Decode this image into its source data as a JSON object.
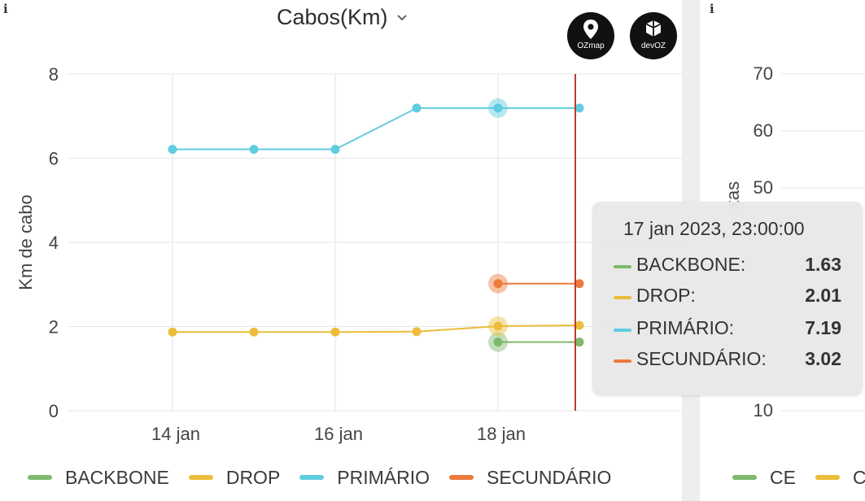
{
  "left_panel": {
    "info_icon": "i",
    "title": "Cabos(Km)",
    "logos": {
      "ozmap": "OZmap",
      "devoz": "devOZ"
    },
    "tooltip": {
      "time": "17 jan 2023, 23:00:00",
      "rows": [
        {
          "name": "BACKBONE:",
          "value": "1.63",
          "color": "#7fb96b"
        },
        {
          "name": "DROP:",
          "value": "2.01",
          "color": "#ecbd3a"
        },
        {
          "name": "PRIMÁRIO:",
          "value": "7.19",
          "color": "#5fcde0"
        },
        {
          "name": "SECUNDÁRIO:",
          "value": "3.02",
          "color": "#ee7a3c"
        }
      ]
    }
  },
  "right_panel": {
    "info_icon": "i",
    "ylabel_fragment": "xas",
    "y_ticks": [
      "70",
      "60",
      "50",
      "10"
    ],
    "legend": [
      {
        "label": "CE",
        "color": "#7fb96b"
      },
      {
        "label": "C",
        "color": "#ecbd3a"
      }
    ]
  },
  "chart_data": {
    "type": "line",
    "title": "Cabos(Km)",
    "xlabel": "",
    "ylabel": "Km de cabo",
    "x": [
      "14 jan",
      "15 jan",
      "16 jan",
      "17 jan",
      "18 jan",
      "19 jan"
    ],
    "x_ticks": [
      "14 jan",
      "16 jan",
      "18 jan"
    ],
    "y_ticks": [
      0,
      2,
      4,
      6,
      8
    ],
    "ylim": [
      0,
      8
    ],
    "grid": true,
    "legend_position": "bottom",
    "hover_x_label": "17 jan 2023, 23:00:00",
    "series": [
      {
        "name": "BACKBONE",
        "color": "#7fb96b",
        "values": [
          null,
          null,
          null,
          null,
          1.63,
          1.63
        ]
      },
      {
        "name": "DROP",
        "color": "#ecbd3a",
        "values": [
          1.87,
          1.87,
          1.87,
          1.88,
          2.01,
          2.03
        ]
      },
      {
        "name": "PRIMÁRIO",
        "color": "#5fcde0",
        "values": [
          6.21,
          6.21,
          6.21,
          7.19,
          7.19,
          7.19
        ]
      },
      {
        "name": "SECUNDÁRIO",
        "color": "#ee7a3c",
        "values": [
          null,
          null,
          null,
          null,
          3.02,
          3.02
        ]
      }
    ],
    "highlight_index": 4,
    "cursor_color": "#c0392b"
  }
}
